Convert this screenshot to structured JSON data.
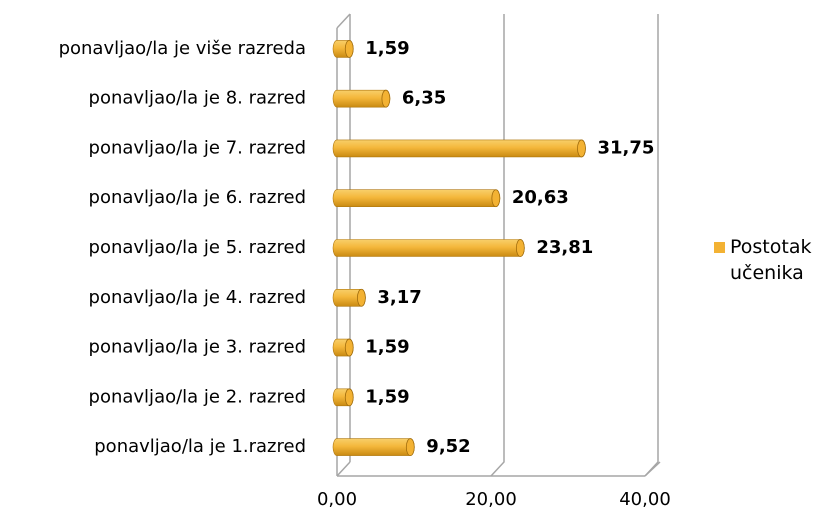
{
  "chart_data": {
    "type": "bar",
    "orientation": "horizontal",
    "categories": [
      "ponavljao/la je više razreda",
      "ponavljao/la je 8. razred",
      "ponavljao/la je 7. razred",
      "ponavljao/la je 6. razred",
      "ponavljao/la je 5. razred",
      "ponavljao/la je 4. razred",
      "ponavljao/la je 3. razred",
      "ponavljao/la je 2. razred",
      "ponavljao/la je 1.razred"
    ],
    "series": [
      {
        "name": "Postotak učenika",
        "color": "#f3b233",
        "values": [
          1.59,
          6.35,
          31.75,
          20.63,
          23.81,
          3.17,
          1.59,
          1.59,
          9.52
        ],
        "value_labels": [
          "1,59",
          "6,35",
          "31,75",
          "20,63",
          "23,81",
          "3,17",
          "1,59",
          "1,59",
          "9,52"
        ]
      }
    ],
    "xlim": [
      0,
      40
    ],
    "xticks": [
      {
        "value": 0,
        "label": "0,00"
      },
      {
        "value": 20,
        "label": "20,00"
      },
      {
        "value": 40,
        "label": "40,00"
      }
    ],
    "grid": true,
    "legend": "right"
  }
}
